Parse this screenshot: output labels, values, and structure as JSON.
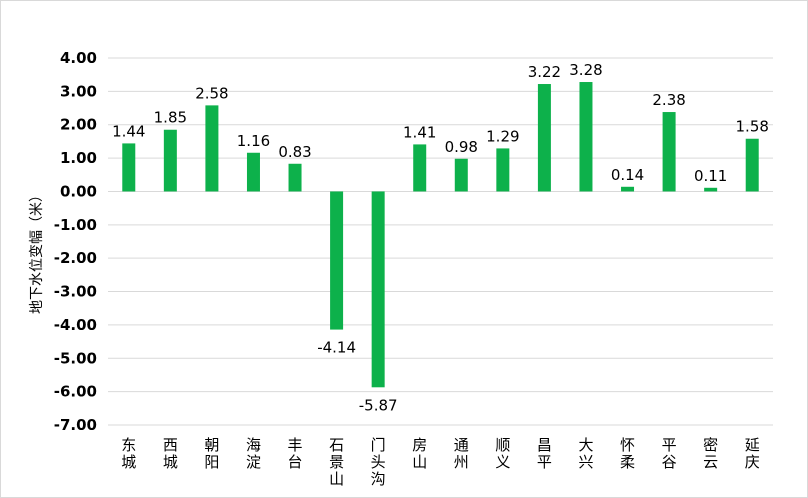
{
  "chart_data": {
    "type": "bar",
    "title": "",
    "xlabel": "",
    "ylabel": "地下水位变幅（米）",
    "categories": [
      "东城",
      "西城",
      "朝阳",
      "海淀",
      "丰台",
      "石景山",
      "门头沟",
      "房山",
      "通州",
      "顺义",
      "昌平",
      "大兴",
      "怀柔",
      "平谷",
      "密云",
      "延庆"
    ],
    "values": [
      1.44,
      1.85,
      2.58,
      1.16,
      0.83,
      -4.14,
      -5.87,
      1.41,
      0.98,
      1.29,
      3.22,
      3.28,
      0.14,
      2.38,
      0.11,
      1.58
    ],
    "value_labels": [
      "1.44",
      "1.85",
      "2.58",
      "1.16",
      "0.83",
      "-4.14",
      "-5.87",
      "1.41",
      "0.98",
      "1.29",
      "3.22",
      "3.28",
      "0.14",
      "2.38",
      "0.11",
      "1.58"
    ],
    "ylim": [
      -7,
      4
    ],
    "yticks": [
      4,
      3,
      2,
      1,
      0,
      -1,
      -2,
      -3,
      -4,
      -5,
      -6,
      -7
    ],
    "ytick_labels": [
      "4.00",
      "3.00",
      "2.00",
      "1.00",
      "0.00",
      "-1.00",
      "-2.00",
      "-3.00",
      "-4.00",
      "-5.00",
      "-6.00",
      "-7.00"
    ],
    "grid": true,
    "legend": "none",
    "colors": {
      "bar": "#0db14b",
      "grid": "#d9d9d9",
      "text": "#000000"
    }
  }
}
